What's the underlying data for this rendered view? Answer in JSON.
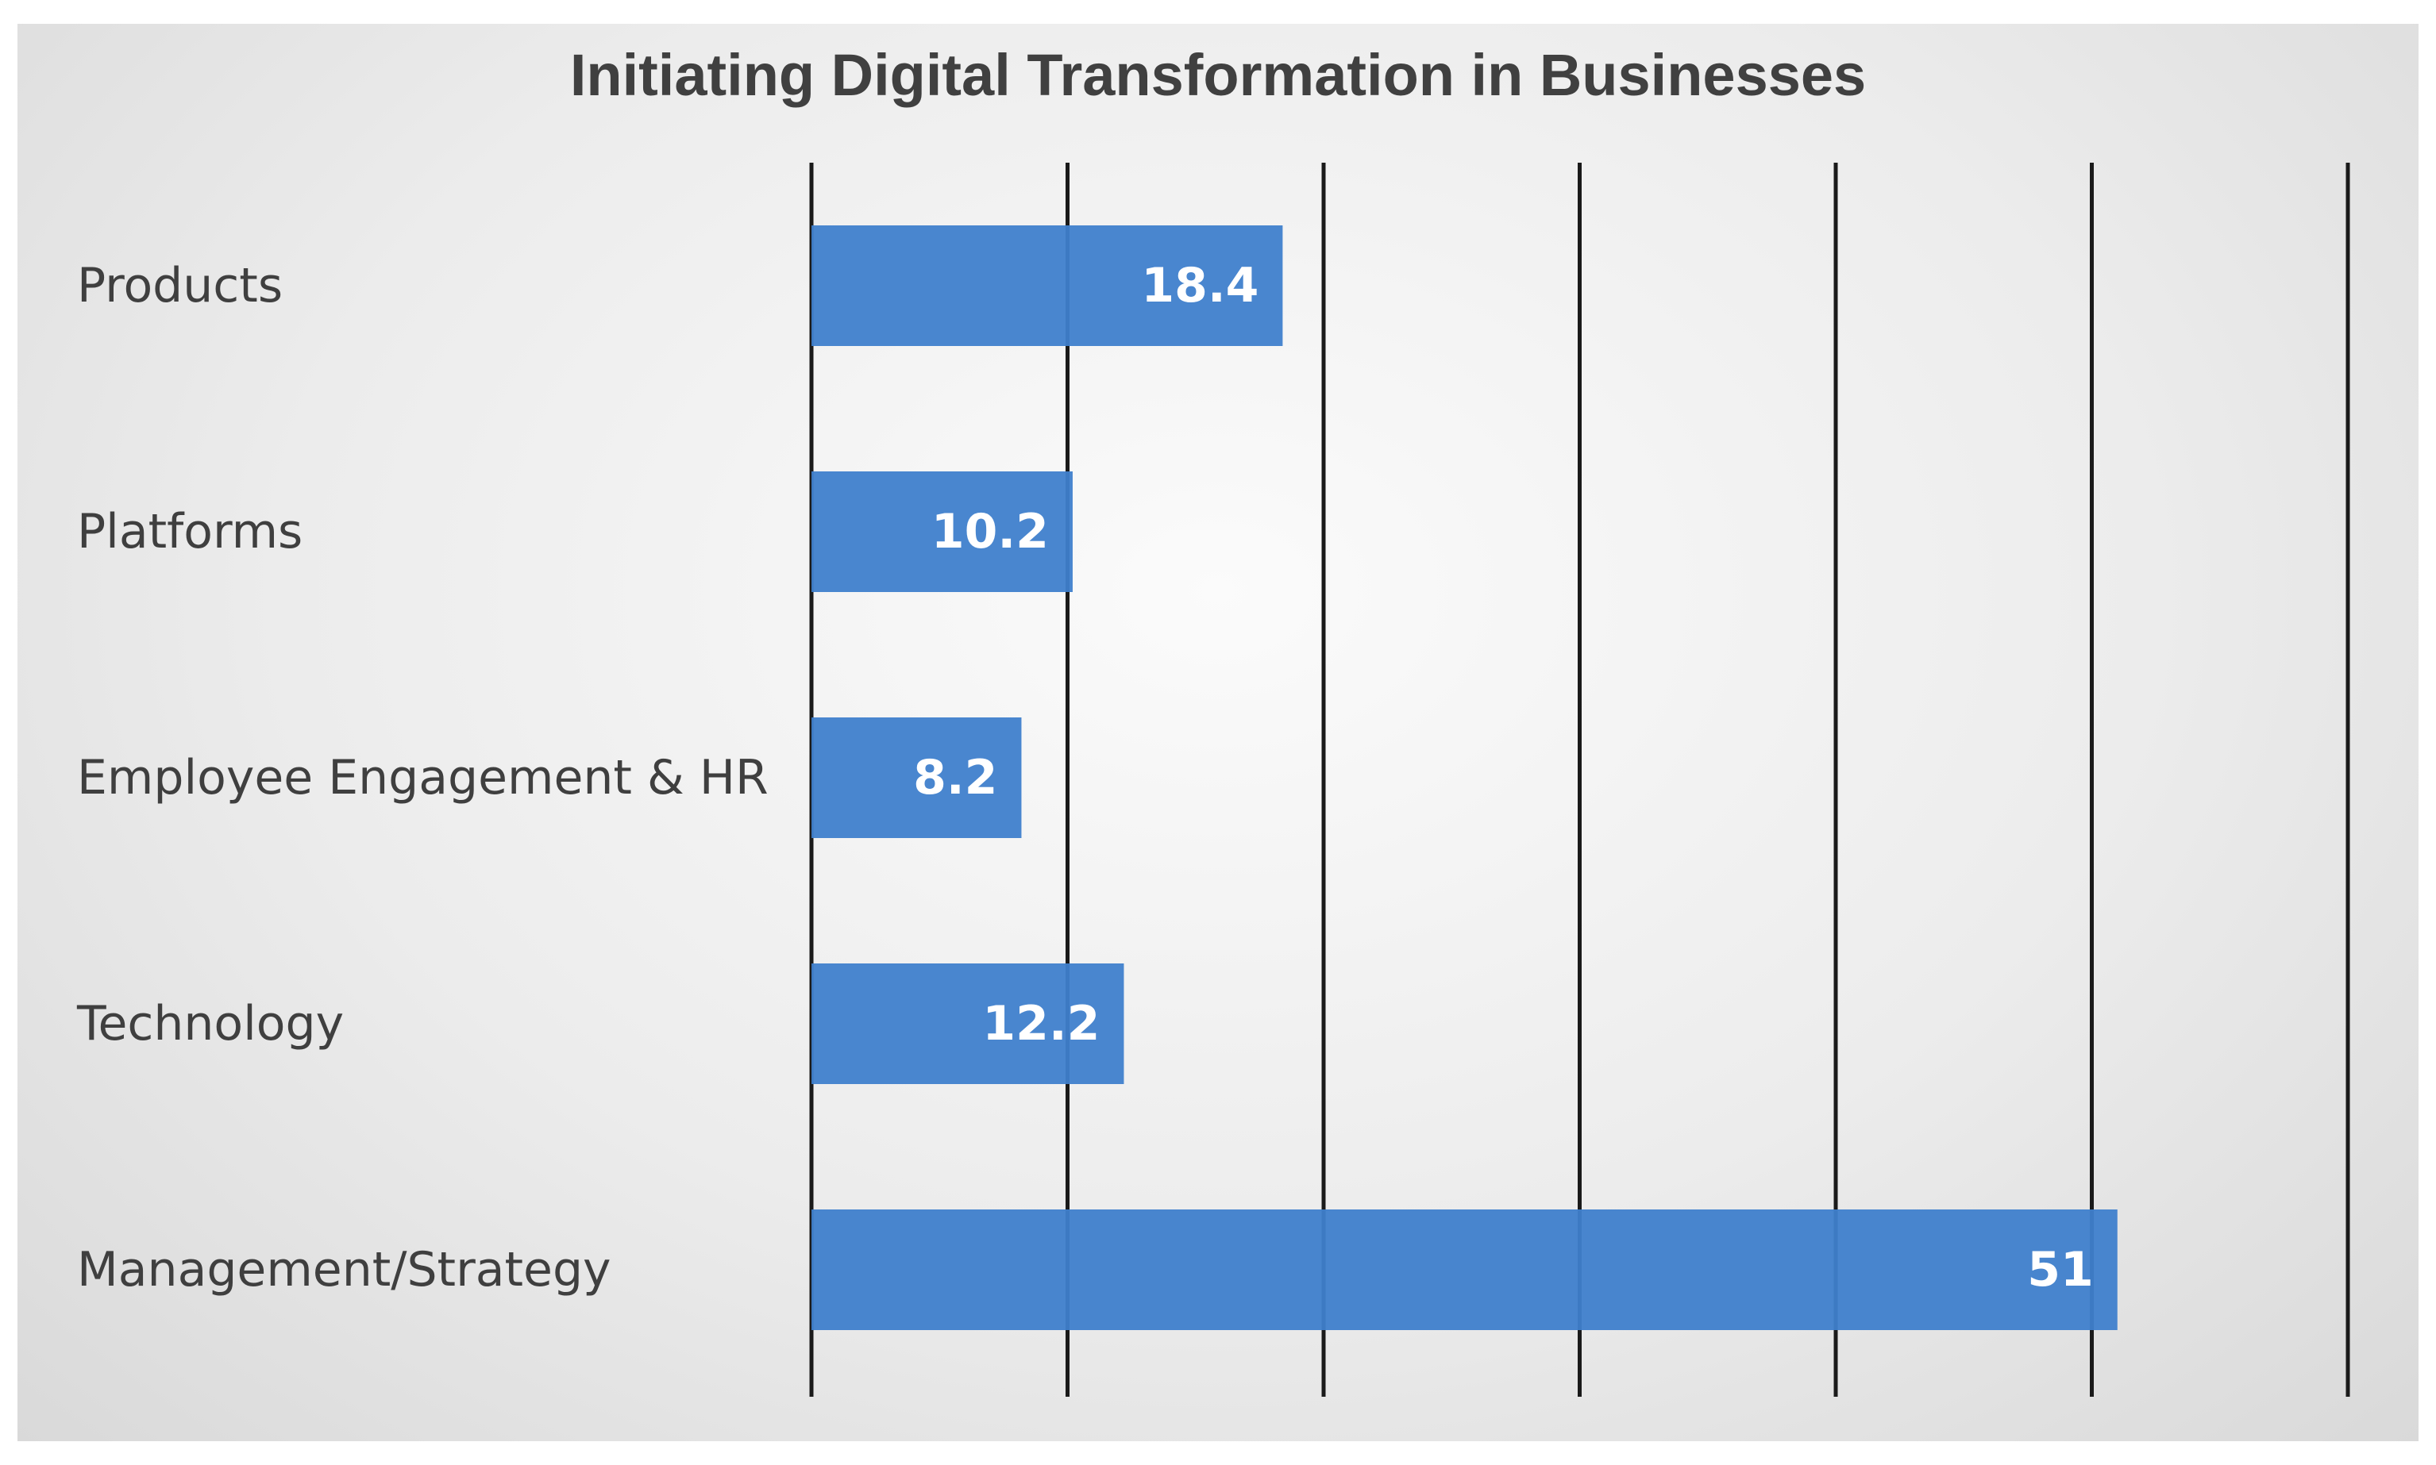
{
  "chart_data": {
    "type": "bar",
    "orientation": "horizontal",
    "title": "Initiating Digital Transformation in Businesses",
    "categories": [
      "Products",
      "Platforms",
      "Employee Engagement & HR",
      "Technology",
      "Management/Strategy"
    ],
    "values": [
      18.4,
      10.2,
      8.2,
      12.2,
      51
    ],
    "value_labels": [
      "18.4",
      "10.2",
      "8.2",
      "12.2",
      "51"
    ],
    "xlim": [
      0,
      60
    ],
    "xtick_step": 10,
    "grid": "vertical",
    "xlabel": "",
    "ylabel": "",
    "legend": "none",
    "colors": {
      "bar": "#3f7fcc",
      "gridline": "#1a1a1a",
      "category_text": "#3f3f3f",
      "value_text": "#ffffff"
    }
  }
}
